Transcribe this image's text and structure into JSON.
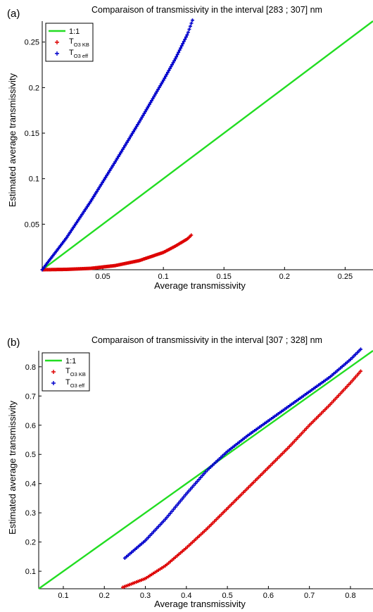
{
  "chart_data": [
    {
      "type": "scatter",
      "panel_label": "(a)",
      "title": "Comparaison of transmissivity in the interval [283 ; 307] nm",
      "xlabel": "Average transmissivity",
      "ylabel": "Estimated average transmissivity",
      "xlim": [
        0.0,
        0.273
      ],
      "ylim": [
        0.0,
        0.273
      ],
      "xticks": [
        0.05,
        0.1,
        0.15,
        0.2,
        0.25
      ],
      "yticks": [
        0.05,
        0.1,
        0.15,
        0.2,
        0.25
      ],
      "xticklabels": [
        "0.05",
        "0.1",
        "0.15",
        "0.2",
        "0.25"
      ],
      "yticklabels": [
        "0.05",
        "0.1",
        "0.15",
        "0.2",
        "0.25"
      ],
      "grid": false,
      "legend_position": "top-left",
      "series": [
        {
          "name": "1:1",
          "kind": "line",
          "color": "#22dd22",
          "x": [
            0.0,
            0.273
          ],
          "y": [
            0.0,
            0.273
          ]
        },
        {
          "name_main": "T",
          "name_sub": "O3 KB",
          "kind": "markers",
          "color": "#dd0000",
          "x": [
            0.0,
            0.02,
            0.04,
            0.06,
            0.08,
            0.1,
            0.11,
            0.12,
            0.123
          ],
          "y": [
            0.0,
            0.0004,
            0.0015,
            0.0045,
            0.01,
            0.019,
            0.026,
            0.034,
            0.038
          ]
        },
        {
          "name_main": "T",
          "name_sub": "O3 eff",
          "kind": "markers",
          "color": "#0000cc",
          "x": [
            0.0,
            0.02,
            0.04,
            0.06,
            0.08,
            0.1,
            0.11,
            0.12,
            0.124
          ],
          "y": [
            0.0,
            0.035,
            0.075,
            0.118,
            0.162,
            0.208,
            0.232,
            0.259,
            0.274
          ]
        }
      ]
    },
    {
      "type": "scatter",
      "panel_label": "(b)",
      "title": "Comparaison of transmissivity in the interval [307 ; 328] nm",
      "xlabel": "Average transmissivity",
      "ylabel": "Estimated average transmissivity",
      "xlim": [
        0.04,
        0.855
      ],
      "ylim": [
        0.04,
        0.855
      ],
      "xticks": [
        0.1,
        0.2,
        0.3,
        0.4,
        0.5,
        0.6,
        0.7,
        0.8
      ],
      "yticks": [
        0.1,
        0.2,
        0.3,
        0.4,
        0.5,
        0.6,
        0.7,
        0.8
      ],
      "xticklabels": [
        "0.1",
        "0.2",
        "0.3",
        "0.4",
        "0.5",
        "0.6",
        "0.7",
        "0.8"
      ],
      "yticklabels": [
        "0.1",
        "0.2",
        "0.3",
        "0.4",
        "0.5",
        "0.6",
        "0.7",
        "0.8"
      ],
      "grid": false,
      "legend_position": "top-left",
      "series": [
        {
          "name": "1:1",
          "kind": "line",
          "color": "#22dd22",
          "x": [
            0.04,
            0.855
          ],
          "y": [
            0.04,
            0.855
          ]
        },
        {
          "name_main": "T",
          "name_sub": "O3 KB",
          "kind": "markers",
          "color": "#dd0000",
          "x": [
            0.245,
            0.3,
            0.35,
            0.4,
            0.45,
            0.5,
            0.55,
            0.6,
            0.65,
            0.7,
            0.75,
            0.8,
            0.825
          ],
          "y": [
            0.045,
            0.075,
            0.12,
            0.18,
            0.245,
            0.315,
            0.385,
            0.455,
            0.525,
            0.6,
            0.67,
            0.745,
            0.785
          ]
        },
        {
          "name_main": "T",
          "name_sub": "O3 eff",
          "kind": "markers",
          "color": "#0000cc",
          "x": [
            0.25,
            0.3,
            0.35,
            0.4,
            0.45,
            0.5,
            0.55,
            0.6,
            0.65,
            0.7,
            0.75,
            0.8,
            0.825
          ],
          "y": [
            0.145,
            0.205,
            0.28,
            0.365,
            0.445,
            0.51,
            0.565,
            0.615,
            0.665,
            0.715,
            0.765,
            0.825,
            0.86
          ]
        }
      ]
    }
  ]
}
